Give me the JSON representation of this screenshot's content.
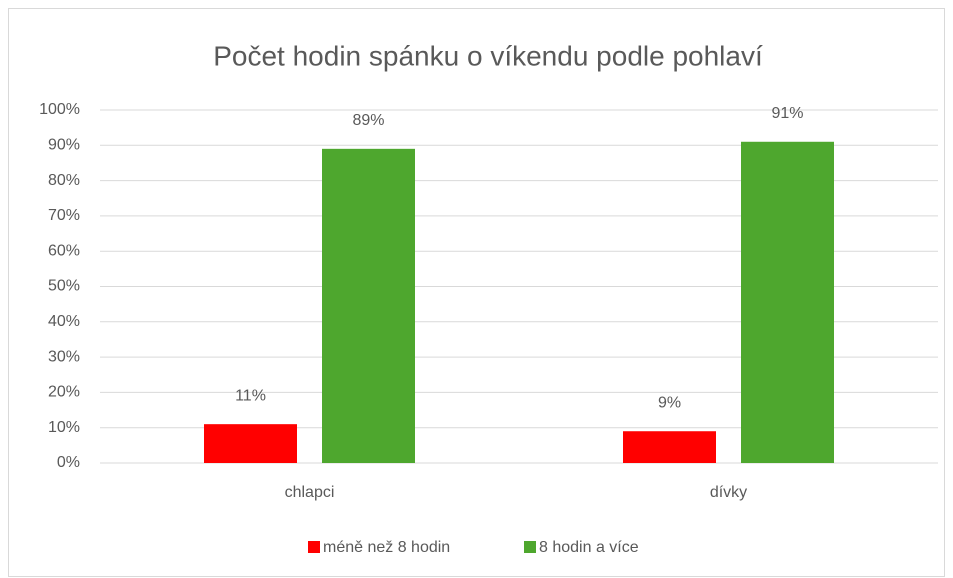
{
  "chart_data": {
    "type": "bar",
    "title": "Počet hodin spánku o víkendu podle pohlaví",
    "categories": [
      "chlapci",
      "dívky"
    ],
    "series": [
      {
        "name": "méně než 8 hodin",
        "color": "#ff0000",
        "values": [
          11,
          9
        ],
        "value_labels": [
          "11%",
          "9%"
        ]
      },
      {
        "name": "8 hodin a více",
        "color": "#4ea72e",
        "values": [
          89,
          91
        ],
        "value_labels": [
          "89%",
          "91%"
        ]
      }
    ],
    "ylim": [
      0,
      100
    ],
    "yticks": [
      {
        "value": 0,
        "label": "0%"
      },
      {
        "value": 10,
        "label": "10%"
      },
      {
        "value": 20,
        "label": "20%"
      },
      {
        "value": 30,
        "label": "30%"
      },
      {
        "value": 40,
        "label": "40%"
      },
      {
        "value": 50,
        "label": "50%"
      },
      {
        "value": 60,
        "label": "60%"
      },
      {
        "value": 70,
        "label": "70%"
      },
      {
        "value": 80,
        "label": "80%"
      },
      {
        "value": 90,
        "label": "90%"
      },
      {
        "value": 100,
        "label": "100%"
      }
    ],
    "grid": true,
    "legend": "bottom"
  }
}
